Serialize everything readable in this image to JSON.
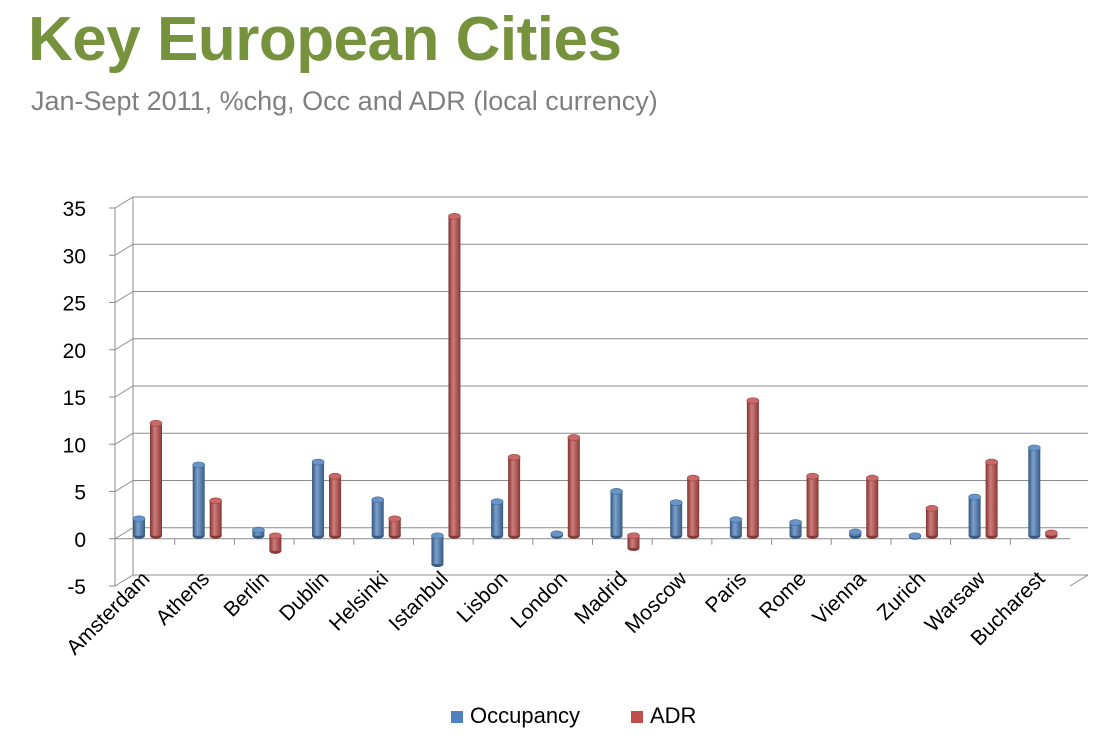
{
  "slide": {
    "title": "Key European Cities",
    "subtitle": "Jan-Sept 2011, %chg, Occ and ADR (local currency)",
    "title_color": "#76923C",
    "subtitle_color": "#7F7F7F"
  },
  "chart_data": {
    "type": "bar",
    "title": "",
    "xlabel": "",
    "ylabel": "",
    "ylim": [
      -5,
      35
    ],
    "yticks": [
      "-5",
      "0",
      "5",
      "10",
      "15",
      "20",
      "25",
      "30",
      "35"
    ],
    "grid": true,
    "legend_position": "bottom",
    "categories": [
      "Amsterdam",
      "Athens",
      "Berlin",
      "Dublin",
      "Helsinki",
      "Istanbul",
      "Lisbon",
      "London",
      "Madrid",
      "Moscow",
      "Paris",
      "Rome",
      "Vienna",
      "Zurich",
      "Warsaw",
      "Bucharest"
    ],
    "series": [
      {
        "name": "Occupancy",
        "color": "#4F81BD",
        "values": [
          1.8,
          7.5,
          0.6,
          7.8,
          3.8,
          -3.0,
          3.6,
          0.2,
          4.7,
          3.5,
          1.7,
          1.4,
          0.4,
          -0.1,
          4.1,
          9.3
        ]
      },
      {
        "name": "ADR",
        "color": "#C0504D",
        "values": [
          11.9,
          3.7,
          -1.6,
          6.3,
          1.8,
          33.8,
          8.3,
          10.4,
          -1.3,
          6.1,
          14.3,
          6.3,
          6.1,
          2.9,
          7.8,
          0.3
        ]
      }
    ]
  }
}
